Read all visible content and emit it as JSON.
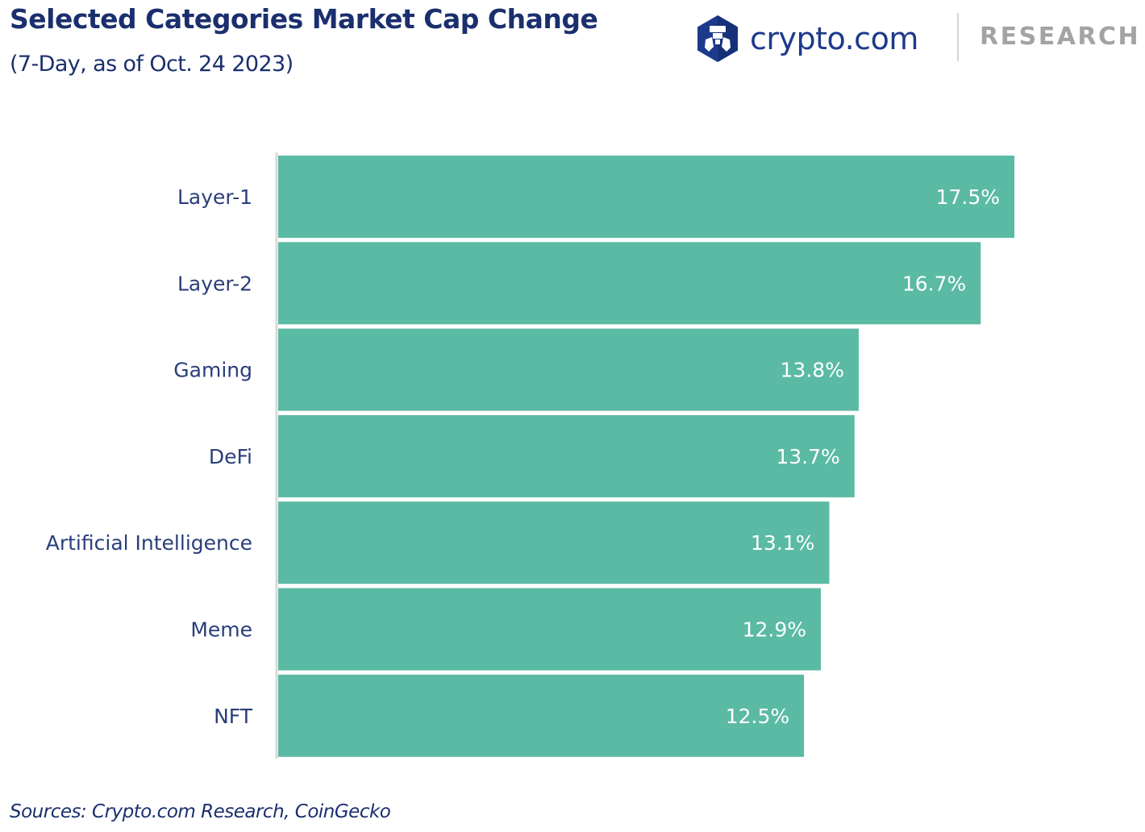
{
  "header": {
    "title": "Selected Categories Market Cap Change",
    "subtitle": "(7-Day, as of Oct. 24 2023)"
  },
  "branding": {
    "logo_icon": "crypto-com-lion-icon",
    "logo_text": "crypto.com",
    "divider": "|",
    "section_text": "RESEARCH",
    "colors": {
      "logo_primary": "#1d3a8a",
      "research_grey": "#a3a3a3"
    }
  },
  "footer": {
    "source": "Sources: Crypto.com Research, CoinGecko"
  },
  "colors": {
    "bar": "#5bbaa4",
    "title": "#1b2f6e",
    "label": "#2a3f7a",
    "axis": "#d9d9d9",
    "value_label": "#ffffff"
  },
  "chart_data": {
    "type": "bar",
    "orientation": "horizontal",
    "title": "Selected Categories Market Cap Change",
    "subtitle": "(7-Day, as of Oct. 24 2023)",
    "xlabel": "",
    "ylabel": "",
    "xlim": [
      0,
      17.5
    ],
    "grid": false,
    "legend": "none",
    "categories": [
      "Layer-1",
      "Layer-2",
      "Gaming",
      "DeFi",
      "Artificial Intelligence",
      "Meme",
      "NFT"
    ],
    "values": [
      17.5,
      16.7,
      13.8,
      13.7,
      13.1,
      12.9,
      12.5
    ],
    "value_labels": [
      "17.5%",
      "16.7%",
      "13.8%",
      "13.7%",
      "13.1%",
      "12.9%",
      "12.5%"
    ],
    "unit": "%"
  }
}
